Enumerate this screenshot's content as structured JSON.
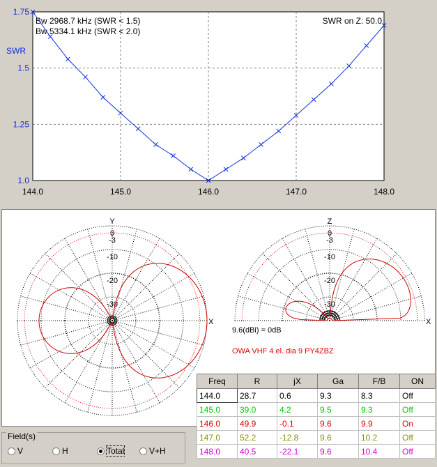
{
  "swr_chart": {
    "ylabel": "SWR",
    "info_left": [
      "Bw 2968.7 kHz (SWR < 1.5)",
      "Bw 5334.1 kHz (SWR < 2.0)"
    ],
    "info_right": "SWR on Z: 50.0",
    "x_ticks": [
      "144.0",
      "145.0",
      "146.0",
      "147.0",
      "148.0"
    ],
    "y_ticks": [
      "1.75",
      "1.5",
      "1.25",
      "1.0"
    ],
    "line_color": "#1030e0"
  },
  "chart_data": {
    "type": "line",
    "xlim": [
      144.0,
      148.0
    ],
    "ylim": [
      1.0,
      1.75
    ],
    "grid": true,
    "series": [
      {
        "x": [
          144.0,
          144.2,
          144.4,
          144.6,
          144.8,
          145.0,
          145.2,
          145.4,
          145.6,
          145.8,
          146.0,
          146.2,
          146.4,
          146.6,
          146.8,
          147.0,
          147.2,
          147.4,
          147.6,
          147.8,
          148.0
        ],
        "values": [
          1.75,
          1.64,
          1.54,
          1.46,
          1.37,
          1.3,
          1.23,
          1.16,
          1.11,
          1.05,
          1.0,
          1.05,
          1.1,
          1.16,
          1.22,
          1.29,
          1.36,
          1.43,
          1.51,
          1.6,
          1.69
        ]
      }
    ]
  },
  "pattern_left": {
    "axis_top": "Y",
    "axis_right": "X",
    "ring_labels": [
      "0",
      "-3",
      "-10",
      "-20",
      "-30"
    ]
  },
  "pattern_right": {
    "axis_top": "Z",
    "axis_right": "X",
    "ring_labels": [
      "0",
      "-3",
      "-10",
      "-20",
      "-30"
    ]
  },
  "dbi_label": "9.6(dBi) = 0dB",
  "model_label": "OWA VHF  4 el.  dia 9   PY4ZBZ",
  "table": {
    "headers": [
      "Freq",
      "R",
      "jX",
      "Ga",
      "F/B",
      "ON"
    ],
    "rows": [
      {
        "cells": [
          "144.0",
          "28.7",
          "0.6",
          "9.3",
          "8.3",
          "Off"
        ],
        "color": "#000000"
      },
      {
        "cells": [
          "145.0",
          "39.0",
          "4.2",
          "9.5",
          "9.3",
          "Off"
        ],
        "color": "#00c800"
      },
      {
        "cells": [
          "146.0",
          "49.9",
          "-0.1",
          "9.6",
          "9.9",
          "On"
        ],
        "color": "#e00000"
      },
      {
        "cells": [
          "147.0",
          "52.2",
          "-12.8",
          "9.6",
          "10.2",
          "Off"
        ],
        "color": "#909000"
      },
      {
        "cells": [
          "148.0",
          "40.5",
          "-22.1",
          "9.6",
          "10.4",
          "Off"
        ],
        "color": "#d000d0"
      }
    ]
  },
  "fields": {
    "legend": "Field(s)",
    "options": [
      "V",
      "H",
      "Total",
      "V+H"
    ],
    "selected": "Total"
  }
}
